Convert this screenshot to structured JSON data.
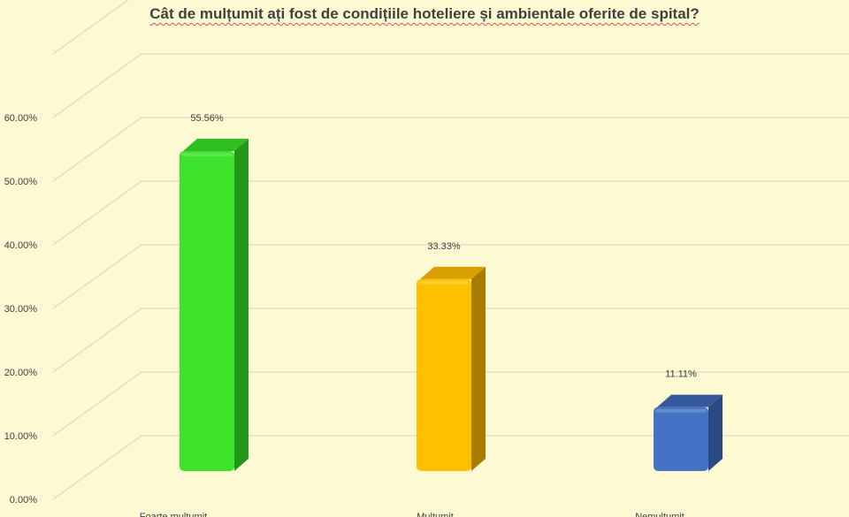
{
  "chart_data": {
    "type": "bar",
    "title": "Cât de mulțumit ați fost de condițiile hoteliere și ambientale oferite de spital?",
    "categories": [
      "Foarte multumit",
      "Multumit",
      "Nemultumit"
    ],
    "values": [
      55.56,
      33.33,
      11.11
    ],
    "value_labels": [
      "55.56%",
      "33.33%",
      "11.11%"
    ],
    "yticks": [
      "0.00%",
      "10.00%",
      "20.00%",
      "30.00%",
      "40.00%",
      "50.00%",
      "60.00%"
    ],
    "ylim": [
      0,
      60
    ],
    "grid": true,
    "legend": "none",
    "three_d": true,
    "colors": [
      "#3de22a",
      "#ffc000",
      "#4472c4"
    ],
    "side_colors": [
      "#23961a",
      "#a77c00",
      "#2b4a83"
    ],
    "top_colors": [
      "#2fbf20",
      "#d8a000",
      "#35599c"
    ]
  }
}
